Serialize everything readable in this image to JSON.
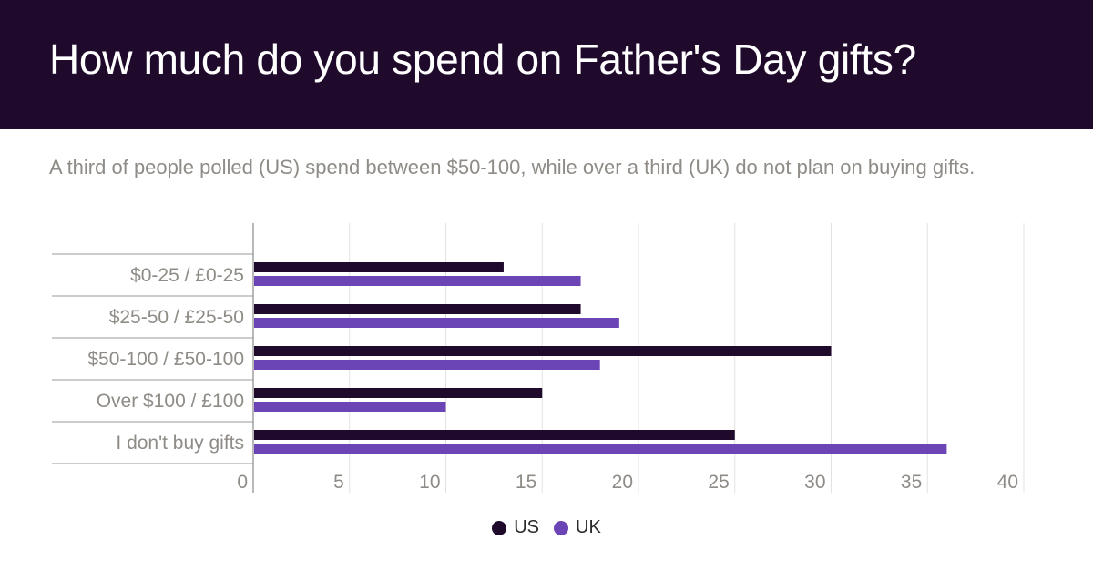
{
  "header": {
    "title": "How much do you spend on Father's Day gifts?",
    "subtitle": "A third of people polled (US) spend between $50-100, while over a third (UK) do not plan on buying gifts."
  },
  "colors": {
    "header_bg": "#1f0a2c",
    "us": "#1f0a2c",
    "uk": "#6b44b6",
    "grid": "#e2e2e2",
    "axis_text": "#8f8b86"
  },
  "chart_data": {
    "type": "bar",
    "orientation": "horizontal",
    "title": "How much do you spend on Father's Day gifts?",
    "subtitle": "A third of people polled (US) spend between $50-100, while over a third (UK) do not plan on buying gifts.",
    "categories": [
      "$0-25 / £0-25",
      "$25-50 / £25-50",
      "$50-100 / £50-100",
      "Over $100 / £100",
      "I don't buy gifts"
    ],
    "series": [
      {
        "name": "US",
        "values": [
          13,
          17,
          30,
          15,
          25
        ]
      },
      {
        "name": "UK",
        "values": [
          17,
          19,
          18,
          10,
          36
        ]
      }
    ],
    "xlim": [
      0,
      40
    ],
    "xticks": [
      "0",
      "5",
      "10",
      "15",
      "20",
      "25",
      "30",
      "35",
      "40"
    ],
    "grid": true,
    "legend_position": "bottom"
  }
}
